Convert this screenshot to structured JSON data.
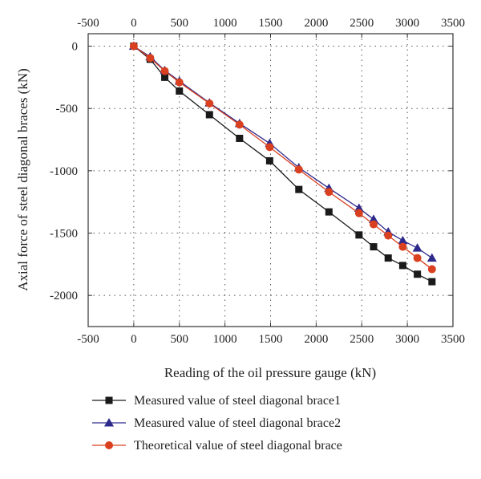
{
  "chart_data": {
    "type": "line",
    "title": "",
    "xlabel": "Reading of the oil pressure gauge (kN)",
    "ylabel": "Axial force of steel diagonal braces (kN)",
    "xlim": [
      -500,
      3500
    ],
    "ylim": [
      -2250,
      100
    ],
    "x_ticks": [
      -500,
      0,
      500,
      1000,
      1500,
      2000,
      2500,
      3000,
      3500
    ],
    "y_ticks": [
      0,
      -500,
      -1000,
      -1500,
      -2000
    ],
    "x_tick_labels": [
      "-500",
      "0",
      "500",
      "1000",
      "1500",
      "2000",
      "2500",
      "3000",
      "3500"
    ],
    "y_tick_labels": [
      "0",
      "-500",
      "-1000",
      "-1500",
      "-2000"
    ],
    "grid": true,
    "legend_position": "bottom",
    "x": [
      0,
      180,
      340,
      500,
      830,
      1160,
      1490,
      1810,
      2140,
      2470,
      2630,
      2790,
      2950,
      3110,
      3270
    ],
    "series": [
      {
        "name": "Measured value of steel diagonal brace1",
        "marker": "square",
        "color": "#1a1a1a",
        "values": [
          0,
          -105,
          -250,
          -360,
          -550,
          -740,
          -920,
          -1150,
          -1330,
          -1515,
          -1610,
          -1700,
          -1760,
          -1830,
          -1890
        ]
      },
      {
        "name": "Measured value of steel diagonal brace2",
        "marker": "triangle",
        "color": "#2e2a8c",
        "values": [
          0,
          -85,
          -195,
          -280,
          -455,
          -620,
          -780,
          -975,
          -1140,
          -1300,
          -1390,
          -1490,
          -1560,
          -1620,
          -1700
        ]
      },
      {
        "name": "Theoretical value of steel diagonal brace",
        "marker": "circle",
        "color": "#d9401f",
        "values": [
          0,
          -95,
          -200,
          -290,
          -460,
          -630,
          -810,
          -990,
          -1170,
          -1340,
          -1430,
          -1520,
          -1610,
          -1700,
          -1790
        ]
      }
    ]
  }
}
